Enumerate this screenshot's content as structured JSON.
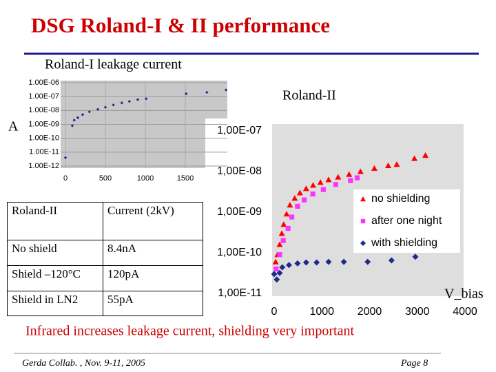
{
  "header": {
    "title": "DSG Roland-I & II performance"
  },
  "charts": [
    {
      "type": "scatter",
      "title": "Roland-I leakage current",
      "y_label": "A",
      "color": "#1f2a8c",
      "marker": "diamond",
      "log_y": true,
      "grid": true,
      "xlim": [
        0,
        2000
      ],
      "xticks": [
        0,
        500,
        1000,
        1500
      ],
      "ylim": [
        1e-12,
        1e-06
      ],
      "yticks": [
        {
          "value": 1e-06,
          "label": "1.00E-06"
        },
        {
          "value": 1e-07,
          "label": "1.00E-07"
        },
        {
          "value": 1e-08,
          "label": "1.00E-08"
        },
        {
          "value": 1e-09,
          "label": "1.00E-09"
        },
        {
          "value": 1e-10,
          "label": "1.00E-10"
        },
        {
          "value": 1e-11,
          "label": "1.00E-11"
        },
        {
          "value": 1e-12,
          "label": "1.00E-12"
        }
      ],
      "x": [
        0,
        86,
        110,
        155,
        215,
        300,
        405,
        500,
        600,
        705,
        800,
        905,
        1010,
        1510,
        1770,
        2010
      ],
      "values": [
        4e-12,
        8e-10,
        2e-09,
        3e-09,
        5e-09,
        8e-09,
        1.2e-08,
        1.7e-08,
        2.5e-08,
        3.5e-08,
        4.5e-08,
        6e-08,
        7e-08,
        1.6e-07,
        2e-07,
        3e-07
      ]
    },
    {
      "type": "scatter",
      "title": "Roland-II",
      "x_label": "V_bias",
      "log_y": true,
      "legend": "right",
      "xlim": [
        0,
        4000
      ],
      "xticks": [
        0,
        1000,
        2000,
        3000,
        4000
      ],
      "ylim": [
        1e-11,
        1.5e-07
      ],
      "yticks": [
        {
          "value": 1e-07,
          "label": "1,00E-07"
        },
        {
          "value": 1e-08,
          "label": "1,00E-08"
        },
        {
          "value": 1e-09,
          "label": "1,00E-09"
        },
        {
          "value": 1e-10,
          "label": "1,00E-10"
        },
        {
          "value": 1e-11,
          "label": "1,00E-11"
        }
      ],
      "series": [
        {
          "name": "no shielding",
          "color": "#ff0000",
          "marker": "triangle",
          "x": [
            30,
            70,
            115,
            160,
            200,
            260,
            330,
            430,
            540,
            670,
            815,
            970,
            1140,
            1340,
            1570,
            1810,
            2100,
            2390,
            2570,
            2940,
            3170
          ],
          "values": [
            6e-11,
            9e-11,
            1.6e-10,
            3e-10,
            5e-10,
            9e-10,
            1.5e-09,
            2.2e-09,
            3e-09,
            3.8e-09,
            4.6e-09,
            5.4e-09,
            6.3e-09,
            7.3e-09,
            8.5e-09,
            1e-08,
            1.2e-08,
            1.4e-08,
            1.5e-08,
            2.1e-08,
            2.5e-08
          ]
        },
        {
          "name": "after one night",
          "color": "#ff33ff",
          "marker": "square",
          "x": [
            40,
            115,
            190,
            290,
            370,
            490,
            630,
            810,
            1030,
            1290,
            1600,
            1740
          ],
          "values": [
            4e-11,
            9e-11,
            2e-10,
            4e-10,
            7.6e-10,
            1.4e-09,
            2e-09,
            2.8e-09,
            3.6e-09,
            4.8e-09,
            6e-09,
            7e-09
          ]
        },
        {
          "name": "with shielding",
          "color": "#1f2a8c",
          "marker": "diamond",
          "x": [
            0,
            55,
            115,
            170,
            310,
            490,
            670,
            890,
            1140,
            1460,
            1960,
            2460,
            2960
          ],
          "values": [
            3e-11,
            2.2e-11,
            3.2e-11,
            4.4e-11,
            5e-11,
            5.5e-11,
            5.8e-11,
            5.8e-11,
            6e-11,
            6e-11,
            6e-11,
            6.5e-11,
            8e-11
          ]
        }
      ]
    }
  ],
  "table": {
    "header": [
      "Roland-II",
      "Current (2kV)"
    ],
    "rows": [
      [
        "No shield",
        "8.4nA"
      ],
      [
        "Shield –120°C",
        "120pA"
      ],
      [
        "Shield in LN2",
        "55pA"
      ]
    ]
  },
  "caption": "Infrared increases leakage current, shielding very important",
  "footer": {
    "left": "Gerda Collab. , Nov. 9-11, 2005",
    "right": "Page 8"
  }
}
